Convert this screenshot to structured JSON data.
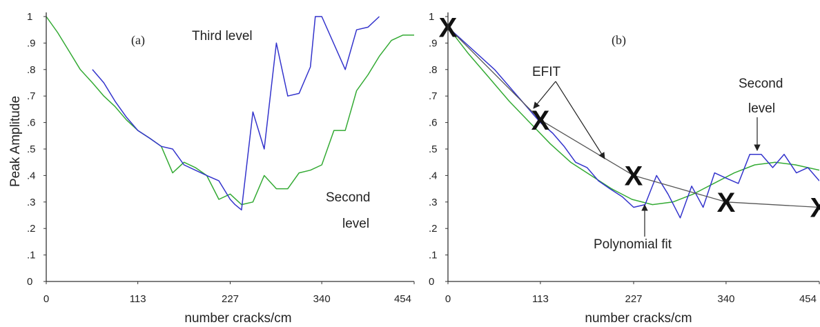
{
  "chart_data": [
    {
      "type": "line",
      "panel": "(a)",
      "xlabel": "number cracks/cm",
      "ylabel": "Peak Amplitude",
      "xlim": [
        0,
        454
      ],
      "ylim": [
        0,
        1.0
      ],
      "xticks": [
        "0",
        "113",
        "227",
        "340",
        "454"
      ],
      "yticks": [
        "0",
        ".1",
        ".2",
        ".3",
        ".4",
        ".5",
        ".6",
        ".7",
        ".8",
        ".9",
        "1"
      ],
      "series": [
        {
          "name": "Second level",
          "color": "#33aa33",
          "x": [
            0,
            14,
            28,
            42,
            57,
            71,
            85,
            99,
            113,
            128,
            142,
            156,
            170,
            184,
            198,
            213,
            227,
            241,
            255,
            269,
            284,
            298,
            312,
            326,
            340,
            355,
            369,
            383,
            397,
            411,
            426,
            440,
            454
          ],
          "y": [
            1.0,
            0.94,
            0.87,
            0.8,
            0.75,
            0.7,
            0.66,
            0.61,
            0.57,
            0.54,
            0.51,
            0.41,
            0.45,
            0.43,
            0.4,
            0.31,
            0.33,
            0.29,
            0.3,
            0.4,
            0.35,
            0.35,
            0.41,
            0.42,
            0.44,
            0.57,
            0.57,
            0.72,
            0.78,
            0.85,
            0.91,
            0.93,
            0.93
          ]
        },
        {
          "name": "Third level",
          "color": "#3333cc",
          "x": [
            57,
            71,
            85,
            99,
            113,
            128,
            142,
            156,
            170,
            184,
            198,
            213,
            227,
            233,
            241,
            255,
            269,
            284,
            298,
            312,
            326,
            332,
            340,
            369,
            383,
            397,
            411
          ],
          "y": [
            0.8,
            0.75,
            0.68,
            0.62,
            0.57,
            0.54,
            0.51,
            0.5,
            0.44,
            0.42,
            0.4,
            0.38,
            0.31,
            0.29,
            0.27,
            0.64,
            0.5,
            0.9,
            0.7,
            0.71,
            0.81,
            1.0,
            1.0,
            0.8,
            0.95,
            0.96,
            1.0
          ]
        }
      ]
    },
    {
      "type": "line",
      "panel": "(b)",
      "xlabel": "number cracks/cm",
      "ylabel": "",
      "xlim": [
        0,
        454
      ],
      "ylim": [
        0,
        1.0
      ],
      "xticks": [
        "0",
        "113",
        "227",
        "340",
        "454"
      ],
      "yticks": [
        "0",
        ".1",
        ".2",
        ".3",
        ".4",
        ".5",
        ".6",
        ".7",
        ".8",
        ".9",
        "1"
      ],
      "series": [
        {
          "name": "Polynomial fit",
          "color": "#33aa33",
          "x": [
            0,
            25,
            50,
            75,
            100,
            125,
            150,
            175,
            200,
            225,
            250,
            275,
            300,
            325,
            350,
            375,
            400,
            425,
            454
          ],
          "y": [
            0.96,
            0.86,
            0.77,
            0.68,
            0.6,
            0.52,
            0.45,
            0.4,
            0.35,
            0.31,
            0.29,
            0.3,
            0.33,
            0.37,
            0.41,
            0.44,
            0.45,
            0.44,
            0.42
          ]
        },
        {
          "name": "Second level",
          "color": "#3333cc",
          "x": [
            0,
            57,
            113,
            128,
            142,
            156,
            170,
            184,
            198,
            213,
            227,
            241,
            255,
            269,
            284,
            298,
            312,
            326,
            340,
            355,
            369,
            383,
            397,
            411,
            426,
            440,
            454
          ],
          "y": [
            0.96,
            0.8,
            0.6,
            0.56,
            0.51,
            0.45,
            0.43,
            0.38,
            0.35,
            0.32,
            0.28,
            0.29,
            0.4,
            0.33,
            0.24,
            0.36,
            0.28,
            0.41,
            0.39,
            0.37,
            0.48,
            0.48,
            0.43,
            0.48,
            0.41,
            0.43,
            0.38
          ]
        },
        {
          "name": "EFIT",
          "color": "#555555",
          "x": [
            0,
            113,
            227,
            340,
            454
          ],
          "y": [
            0.96,
            0.61,
            0.4,
            0.3,
            0.28
          ]
        }
      ],
      "markers": {
        "glyph": "X",
        "x": [
          0,
          113,
          227,
          340,
          454
        ],
        "y": [
          0.96,
          0.61,
          0.4,
          0.3,
          0.28
        ]
      }
    }
  ],
  "annotations": {
    "a_third_level": "Third level",
    "a_second_level_1": "Second",
    "a_second_level_2": "level",
    "b_efit": "EFIT",
    "b_second_level_1": "Second",
    "b_second_level_2": "level",
    "b_polynomial_fit": "Polynomial fit"
  }
}
